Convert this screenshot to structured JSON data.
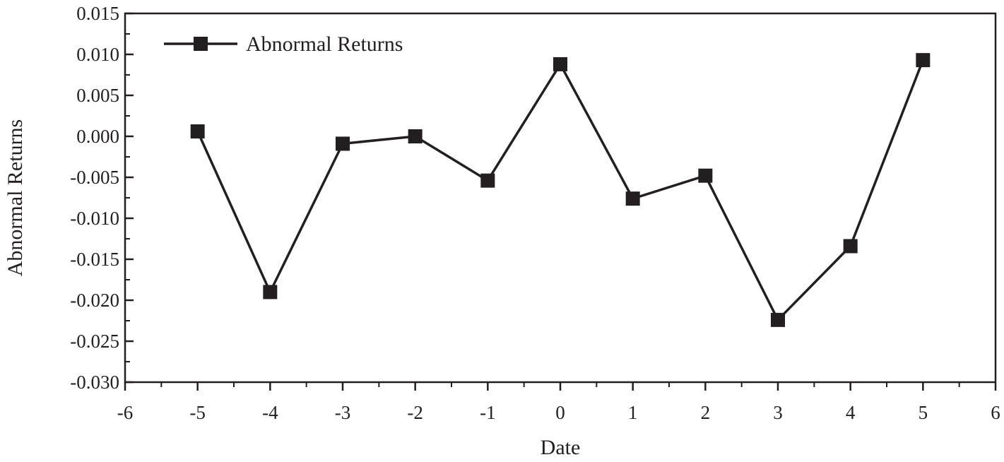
{
  "chart_data": {
    "type": "line",
    "xlabel": "Date",
    "ylabel": "Abnormal Returns",
    "xlim": [
      -6,
      6
    ],
    "ylim": [
      -0.03,
      0.015
    ],
    "x_ticks": [
      -6,
      -5,
      -4,
      -3,
      -2,
      -1,
      0,
      1,
      2,
      3,
      4,
      5,
      6
    ],
    "x_tick_labels": [
      "-6",
      "-5",
      "-4",
      "-3",
      "-2",
      "-1",
      "0",
      "1",
      "2",
      "3",
      "4",
      "5",
      "6"
    ],
    "y_ticks": [
      -0.03,
      -0.025,
      -0.02,
      -0.015,
      -0.01,
      -0.005,
      0.0,
      0.005,
      0.01,
      0.015
    ],
    "y_tick_labels": [
      "-0.030",
      "-0.025",
      "-0.020",
      "-0.015",
      "-0.010",
      "-0.005",
      "0.000",
      "0.005",
      "0.010",
      "0.015"
    ],
    "grid": false,
    "legend_position": "top-left",
    "line_color": "#231f20",
    "marker": "square",
    "series": [
      {
        "name": "Abnormal Returns",
        "x": [
          -5,
          -4,
          -3,
          -2,
          -1,
          0,
          1,
          2,
          3,
          4,
          5
        ],
        "values": [
          0.0006,
          -0.019,
          -0.0009,
          0.0,
          -0.0054,
          0.0088,
          -0.0076,
          -0.0048,
          -0.0224,
          -0.0134,
          0.0093
        ]
      }
    ]
  }
}
